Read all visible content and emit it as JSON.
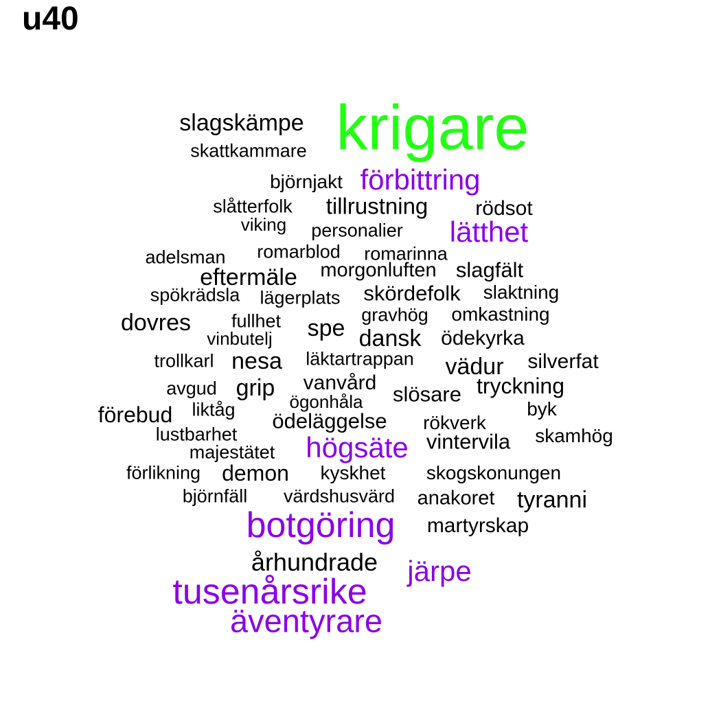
{
  "title": "u40",
  "colors": {
    "black": "#000000",
    "green": "#22ff12",
    "purple": "#8b00e8"
  },
  "words": [
    {
      "text": "krigare",
      "color": "green"
    },
    {
      "text": "slagskämpe",
      "color": "black"
    },
    {
      "text": "skattkammare",
      "color": "black"
    },
    {
      "text": "björnjakt",
      "color": "black"
    },
    {
      "text": "förbittring",
      "color": "purple"
    },
    {
      "text": "slåtterfolk",
      "color": "black"
    },
    {
      "text": "tillrustning",
      "color": "black"
    },
    {
      "text": "rödsot",
      "color": "black"
    },
    {
      "text": "viking",
      "color": "black"
    },
    {
      "text": "personalier",
      "color": "black"
    },
    {
      "text": "lätthet",
      "color": "purple"
    },
    {
      "text": "adelsman",
      "color": "black"
    },
    {
      "text": "romarblod",
      "color": "black"
    },
    {
      "text": "romarinna",
      "color": "black"
    },
    {
      "text": "eftermäle",
      "color": "black"
    },
    {
      "text": "morgonluften",
      "color": "black"
    },
    {
      "text": "slagfält",
      "color": "black"
    },
    {
      "text": "spökrädsla",
      "color": "black"
    },
    {
      "text": "lägerplats",
      "color": "black"
    },
    {
      "text": "skördefolk",
      "color": "black"
    },
    {
      "text": "slaktning",
      "color": "black"
    },
    {
      "text": "dovres",
      "color": "black"
    },
    {
      "text": "fullhet",
      "color": "black"
    },
    {
      "text": "spe",
      "color": "black"
    },
    {
      "text": "gravhög",
      "color": "black"
    },
    {
      "text": "omkastning",
      "color": "black"
    },
    {
      "text": "vinbutelj",
      "color": "black"
    },
    {
      "text": "dansk",
      "color": "black"
    },
    {
      "text": "ödekyrka",
      "color": "black"
    },
    {
      "text": "trollkarl",
      "color": "black"
    },
    {
      "text": "nesa",
      "color": "black"
    },
    {
      "text": "läktartrappan",
      "color": "black"
    },
    {
      "text": "vädur",
      "color": "black"
    },
    {
      "text": "silverfat",
      "color": "black"
    },
    {
      "text": "avgud",
      "color": "black"
    },
    {
      "text": "grip",
      "color": "black"
    },
    {
      "text": "vanvård",
      "color": "black"
    },
    {
      "text": "slösare",
      "color": "black"
    },
    {
      "text": "tryckning",
      "color": "black"
    },
    {
      "text": "ögonhåla",
      "color": "black"
    },
    {
      "text": "förebud",
      "color": "black"
    },
    {
      "text": "liktåg",
      "color": "black"
    },
    {
      "text": "byk",
      "color": "black"
    },
    {
      "text": "ödeläggelse",
      "color": "black"
    },
    {
      "text": "rökverk",
      "color": "black"
    },
    {
      "text": "lustbarhet",
      "color": "black"
    },
    {
      "text": "skamhög",
      "color": "black"
    },
    {
      "text": "högsäte",
      "color": "purple"
    },
    {
      "text": "vintervila",
      "color": "black"
    },
    {
      "text": "majestätet",
      "color": "black"
    },
    {
      "text": "förlikning",
      "color": "black"
    },
    {
      "text": "demon",
      "color": "black"
    },
    {
      "text": "kyskhet",
      "color": "black"
    },
    {
      "text": "skogskonungen",
      "color": "black"
    },
    {
      "text": "björnfäll",
      "color": "black"
    },
    {
      "text": "värdshusvärd",
      "color": "black"
    },
    {
      "text": "anakoret",
      "color": "black"
    },
    {
      "text": "tyranni",
      "color": "black"
    },
    {
      "text": "botgöring",
      "color": "purple"
    },
    {
      "text": "martyrskap",
      "color": "black"
    },
    {
      "text": "århundrade",
      "color": "black"
    },
    {
      "text": "järpe",
      "color": "purple"
    },
    {
      "text": "tusenårsrike",
      "color": "purple"
    },
    {
      "text": "äventyrare",
      "color": "purple"
    }
  ]
}
